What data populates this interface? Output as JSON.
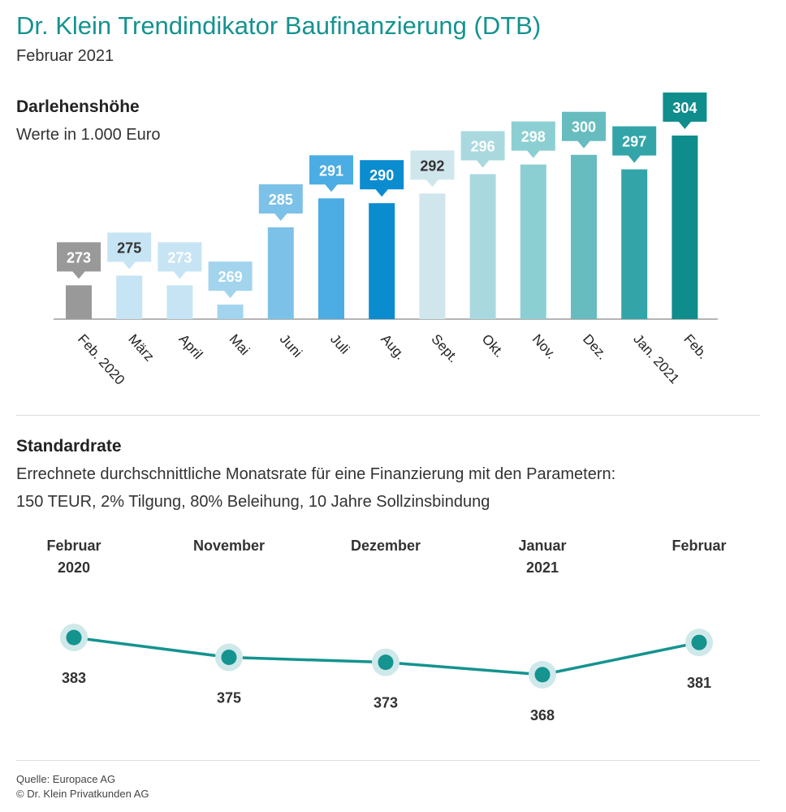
{
  "header": {
    "title": "Dr. Klein Trendindikator Baufinanzierung (DTB)",
    "subtitle": "Februar 2021"
  },
  "section1": {
    "title": "Darlehenshöhe",
    "unit_text": "Werte in 1.000 Euro"
  },
  "section2": {
    "title": "Standardrate",
    "description_line1": "Errechnete durchschnittliche Monatsrate für eine Finanzierung mit den Parametern:",
    "description_line2": "150 TEUR, 2% Tilgung, 80% Beleihung, 10 Jahre Sollzinsbindung"
  },
  "footer": {
    "source": "Quelle: Europace AG",
    "copyright": "© Dr. Klein Privatkunden AG"
  },
  "chart_data": [
    {
      "type": "bar",
      "title": "Darlehenshöhe",
      "ylabel": "Werte in 1.000 Euro",
      "categories": [
        "Feb. 2020",
        "März",
        "April",
        "Mai",
        "Juni",
        "Juli",
        "Aug.",
        "Sept.",
        "Okt.",
        "Nov.",
        "Dez.",
        "Jan. 2021",
        "Feb."
      ],
      "values": [
        273,
        275,
        273,
        269,
        285,
        291,
        290,
        292,
        296,
        298,
        300,
        297,
        304
      ],
      "colors": [
        "#999999",
        "#c6e4f4",
        "#c6e4f4",
        "#a3d4ee",
        "#7cc1e8",
        "#4bade3",
        "#0a8ccf",
        "#cfe6ec",
        "#a9d9de",
        "#8ccfd2",
        "#66bcbf",
        "#33a5a9",
        "#0e8d8c"
      ],
      "label_colors": [
        "#ffffff",
        "#333333",
        "#ffffff",
        "#ffffff",
        "#ffffff",
        "#ffffff",
        "#ffffff",
        "#333333",
        "#ffffff",
        "#ffffff",
        "#ffffff",
        "#ffffff",
        "#ffffff"
      ],
      "ylim": [
        266,
        306
      ]
    },
    {
      "type": "line",
      "title": "Standardrate",
      "categories": [
        "Februar\n2020",
        "November",
        "Dezember",
        "Januar\n2021",
        "Februar"
      ],
      "values": [
        383,
        375,
        373,
        368,
        381
      ],
      "color": "#14938f",
      "ylim": [
        366,
        385
      ]
    }
  ]
}
